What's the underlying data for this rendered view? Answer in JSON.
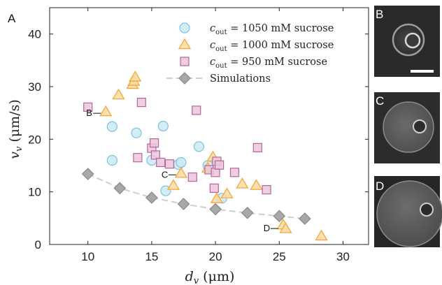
{
  "panels": {
    "main": "A",
    "b": "B",
    "c": "C",
    "d": "D"
  },
  "chart_data": {
    "type": "scatter",
    "xlabel_var": "d",
    "xlabel_sub": "v",
    "xlabel_unit": " (μm)",
    "ylabel_var": "v",
    "ylabel_sub": "v",
    "ylabel_unit": " (μm/s)",
    "xlim": [
      7,
      32
    ],
    "ylim": [
      0,
      45
    ],
    "xticks": [
      10,
      15,
      20,
      25,
      30
    ],
    "yticks": [
      0,
      10,
      20,
      30,
      40
    ],
    "legend_position": "top-right",
    "colors": {
      "c1050_fill": "#cde9f5",
      "c1050_stroke": "#7cc3de",
      "c1000_fill": "#fcdba6",
      "c1000_stroke": "#f2a93b",
      "c950_fill": "#ebc6db",
      "c950_stroke": "#b5669a",
      "sim_fill": "#a8a8a8",
      "sim_stroke": "#888888",
      "sim_line": "#cfcfcf"
    },
    "series": [
      {
        "name_var": "c",
        "name_sub": "out",
        "name_rest": " =  1050 mM sucrose",
        "marker": "circle",
        "points": [
          [
            11.9,
            22.4
          ],
          [
            11.9,
            16.0
          ],
          [
            13.8,
            21.2
          ],
          [
            15.0,
            16.0
          ],
          [
            15.9,
            22.5
          ],
          [
            16.1,
            10.2
          ],
          [
            17.1,
            15.2
          ],
          [
            17.3,
            15.6
          ],
          [
            18.7,
            18.6
          ],
          [
            19.4,
            15.0
          ],
          [
            20.5,
            8.8
          ]
        ]
      },
      {
        "name_var": "c",
        "name_sub": "out",
        "name_rest": " =  1000 mM sucrose",
        "marker": "triangle",
        "points": [
          [
            11.4,
            25.2
          ],
          [
            12.4,
            28.4
          ],
          [
            13.5,
            30.4
          ],
          [
            13.6,
            31.0
          ],
          [
            13.7,
            31.8
          ],
          [
            16.7,
            11.2
          ],
          [
            17.3,
            13.5
          ],
          [
            19.4,
            14.5
          ],
          [
            19.8,
            16.6
          ],
          [
            20.1,
            8.7
          ],
          [
            20.9,
            9.6
          ],
          [
            22.1,
            11.5
          ],
          [
            23.2,
            11.2
          ],
          [
            25.3,
            3.7
          ],
          [
            25.5,
            3.0
          ],
          [
            28.3,
            1.6
          ]
        ]
      },
      {
        "name_var": "c",
        "name_sub": "out",
        "name_rest": " =  950 mM sucrose",
        "marker": "square",
        "points": [
          [
            10.0,
            26.1
          ],
          [
            13.9,
            16.5
          ],
          [
            14.2,
            27.0
          ],
          [
            15.0,
            18.3
          ],
          [
            15.2,
            19.3
          ],
          [
            15.3,
            17.0
          ],
          [
            15.7,
            15.6
          ],
          [
            16.4,
            15.3
          ],
          [
            18.2,
            12.8
          ],
          [
            18.5,
            25.5
          ],
          [
            19.5,
            14.2
          ],
          [
            19.9,
            10.7
          ],
          [
            20.0,
            13.7
          ],
          [
            20.1,
            15.8
          ],
          [
            20.3,
            15.1
          ],
          [
            21.5,
            13.7
          ],
          [
            23.3,
            18.4
          ],
          [
            24.0,
            10.4
          ]
        ]
      },
      {
        "name": "Simulations",
        "marker": "diamond",
        "points": [
          [
            10.0,
            13.4
          ],
          [
            12.5,
            10.7
          ],
          [
            15.0,
            8.9
          ],
          [
            17.5,
            7.7
          ],
          [
            20.0,
            6.7
          ],
          [
            22.5,
            6.0
          ],
          [
            25.0,
            5.4
          ],
          [
            27.0,
            4.9
          ]
        ]
      }
    ],
    "annotations": [
      {
        "label": "B",
        "x": 11.4,
        "y": 25.2
      },
      {
        "label": "C",
        "x": 17.3,
        "y": 13.5
      },
      {
        "label": "D",
        "x": 25.3,
        "y": 3.3
      }
    ],
    "scale_bar": true
  }
}
